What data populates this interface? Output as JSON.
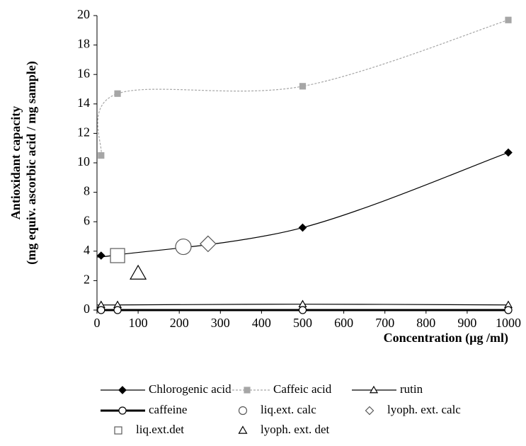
{
  "chart_data": {
    "type": "line",
    "xlabel": "Concentration (µg /ml)",
    "ylabel": [
      "Antioxidant capacity",
      "(mg equiv. ascorbic acid / mg sample)"
    ],
    "xlim": [
      0,
      1000
    ],
    "xticks": [
      0,
      100,
      200,
      300,
      400,
      500,
      600,
      700,
      800,
      900,
      1000
    ],
    "ylim": [
      0,
      20
    ],
    "yticks": [
      0,
      2,
      4,
      6,
      8,
      10,
      12,
      14,
      16,
      18,
      20
    ],
    "series": [
      {
        "name": "Chlorogenic acid",
        "color": "#000000",
        "marker": "diamond",
        "marker_fill": true,
        "line": "solid",
        "x": [
          10,
          50,
          500,
          1000
        ],
        "values": [
          3.7,
          3.75,
          5.6,
          10.7
        ]
      },
      {
        "name": "Caffeic acid",
        "color": "#a6a6a6",
        "marker": "square",
        "marker_fill": true,
        "line": "dashed",
        "x": [
          10,
          50,
          500,
          1000
        ],
        "values": [
          10.5,
          14.7,
          15.2,
          19.7
        ]
      },
      {
        "name": "rutin",
        "color": "#000000",
        "marker": "triangle",
        "marker_fill": false,
        "line": "solid",
        "x": [
          10,
          50,
          500,
          1000
        ],
        "values": [
          0.35,
          0.35,
          0.4,
          0.35
        ]
      },
      {
        "name": "caffeine",
        "color": "#000000",
        "marker": "circle",
        "marker_fill": false,
        "line": "thick",
        "x": [
          10,
          50,
          500,
          1000
        ],
        "values": [
          0,
          0,
          0,
          0
        ]
      },
      {
        "name": "liq.ext. calc",
        "color": "#595959",
        "marker": "circle",
        "marker_fill": false,
        "line": "none",
        "x": [
          210
        ],
        "values": [
          4.3
        ]
      },
      {
        "name": "lyoph. ext. calc",
        "color": "#595959",
        "marker": "diamond",
        "marker_fill": false,
        "line": "none",
        "x": [
          270
        ],
        "values": [
          4.5
        ]
      },
      {
        "name": "liq.ext.det",
        "color": "#595959",
        "marker": "square",
        "marker_fill": false,
        "line": "none",
        "x": [
          50
        ],
        "values": [
          3.7
        ]
      },
      {
        "name": "lyoph. ext. det",
        "color": "#000000",
        "marker": "triangle",
        "marker_fill": false,
        "line": "none",
        "x": [
          100
        ],
        "values": [
          2.5
        ]
      }
    ]
  }
}
